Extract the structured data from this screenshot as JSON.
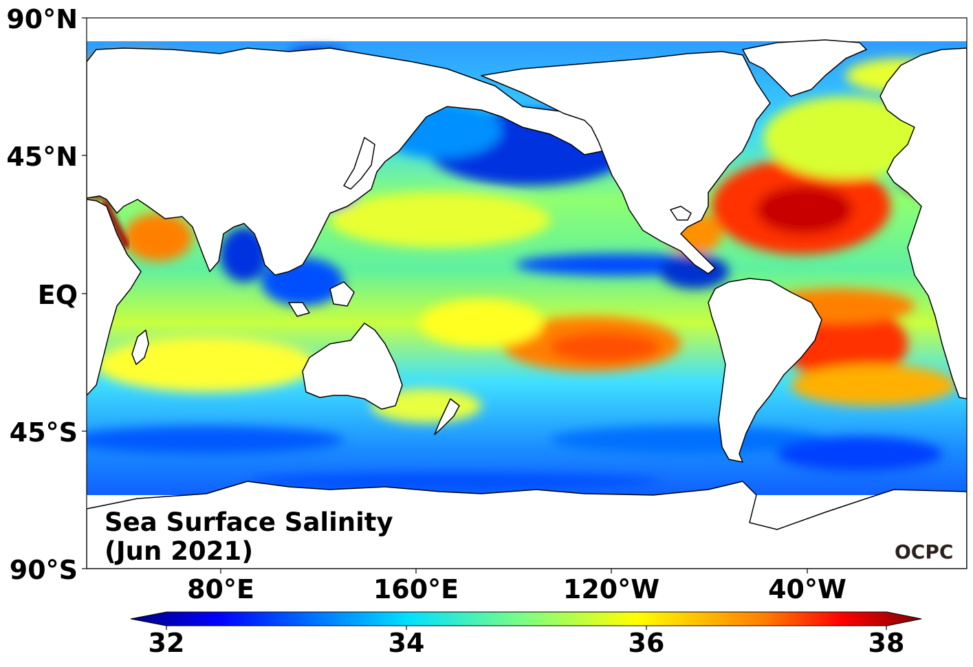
{
  "title": {
    "line1": "Sea Surface Salinity",
    "line2": "(Jun 2021)"
  },
  "logo": "OCPC",
  "lat_labels": [
    "90°N",
    "45°N",
    "EQ",
    "45°S",
    "90°S"
  ],
  "lon_labels": [
    "80°E",
    "160°E",
    "120°W",
    "40°W"
  ],
  "colorbar": {
    "ticks": [
      "32",
      "34",
      "36",
      "38"
    ],
    "min": 32,
    "max": 38,
    "colormap": [
      "#00007f",
      "#0000ff",
      "#007fff",
      "#00ffff",
      "#7fff7f",
      "#ffff00",
      "#ff7f00",
      "#ff0000",
      "#7f0000"
    ]
  },
  "colors": {
    "land": "#ffffff",
    "coastline": "#000000",
    "low_salinity": "#0000c8",
    "high_salinity": "#c80000"
  }
}
